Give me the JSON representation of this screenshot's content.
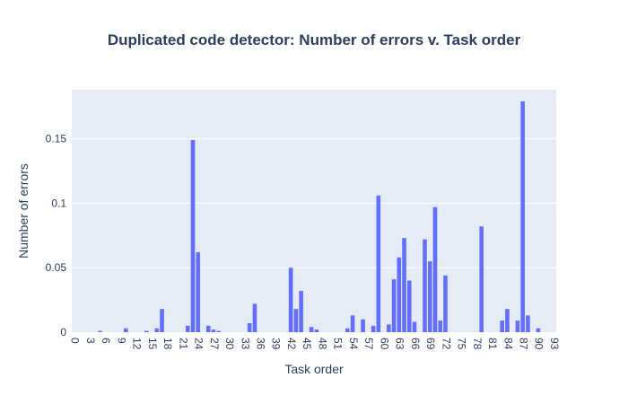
{
  "chart_data": {
    "type": "bar",
    "title": "Duplicated code detector: Number of errors v. Task order",
    "xlabel": "Task order",
    "ylabel": "Number of errors",
    "x_range": [
      -0.5,
      93.5
    ],
    "ylim": [
      0,
      0.188
    ],
    "x_ticks": [
      0,
      3,
      6,
      9,
      12,
      15,
      18,
      21,
      24,
      27,
      30,
      33,
      36,
      39,
      42,
      45,
      48,
      51,
      54,
      57,
      60,
      63,
      66,
      69,
      72,
      75,
      78,
      81,
      84,
      87,
      90,
      93
    ],
    "y_ticks": [
      0,
      0.05,
      0.1,
      0.15
    ],
    "y_tick_labels": [
      "0",
      "0.05",
      "0.1",
      "0.15"
    ],
    "grid": true,
    "bar_color": "#636efa",
    "plot_bg": "#e5ecf6",
    "x": [
      5,
      10,
      14,
      16,
      17,
      22,
      23,
      24,
      26,
      27,
      28,
      34,
      35,
      42,
      43,
      44,
      46,
      47,
      53,
      54,
      56,
      58,
      59,
      61,
      62,
      63,
      64,
      65,
      66,
      68,
      69,
      70,
      71,
      72,
      79,
      83,
      84,
      86,
      87,
      88,
      90
    ],
    "values": [
      0.001,
      0.003,
      0.001,
      0.003,
      0.018,
      0.005,
      0.149,
      0.062,
      0.005,
      0.002,
      0.001,
      0.007,
      0.022,
      0.05,
      0.018,
      0.032,
      0.004,
      0.002,
      0.003,
      0.013,
      0.01,
      0.005,
      0.106,
      0.006,
      0.041,
      0.058,
      0.073,
      0.04,
      0.008,
      0.072,
      0.055,
      0.097,
      0.009,
      0.044,
      0.082,
      0.009,
      0.018,
      0.009,
      0.179,
      0.013,
      0.003
    ]
  }
}
